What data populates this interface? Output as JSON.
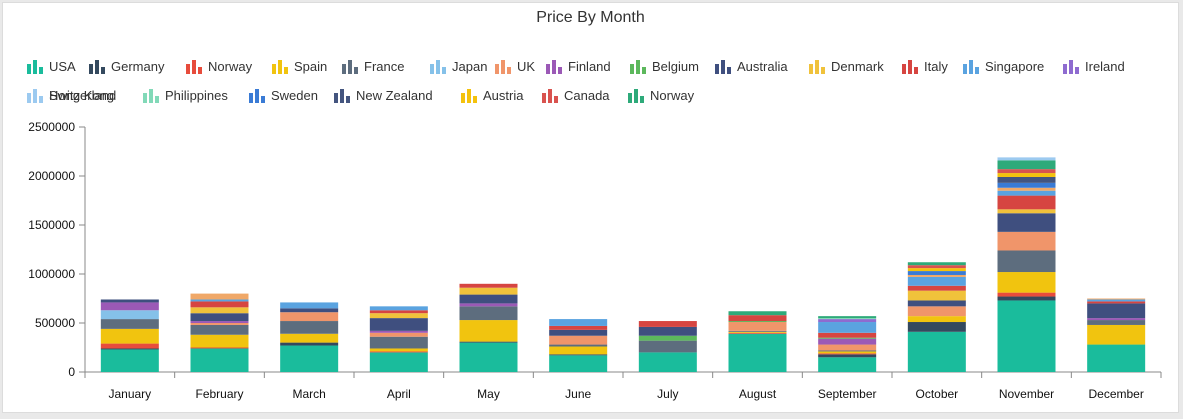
{
  "chart_data": {
    "type": "bar",
    "stacked": true,
    "title": "Price By Month",
    "xlabel": "",
    "ylabel": "",
    "ylim": [
      0,
      2500000
    ],
    "yticks": [
      0,
      500000,
      1000000,
      1500000,
      2000000,
      2500000
    ],
    "ytick_labels": [
      "0",
      "500000",
      "1000000",
      "1500000",
      "2000000",
      "2500000"
    ],
    "legend_position": "top",
    "categories": [
      "January",
      "February",
      "March",
      "April",
      "May",
      "June",
      "July",
      "August",
      "September",
      "October",
      "November",
      "December"
    ],
    "series": [
      {
        "name": "USA",
        "color": "#1abc9c",
        "values": [
          230000,
          240000,
          270000,
          200000,
          300000,
          170000,
          200000,
          390000,
          150000,
          410000,
          730000,
          280000
        ]
      },
      {
        "name": "Germany",
        "color": "#34495e",
        "values": [
          10000,
          0,
          30000,
          0,
          10000,
          10000,
          0,
          0,
          30000,
          100000,
          40000,
          0
        ]
      },
      {
        "name": "Norway",
        "color": "#e74c3c",
        "values": [
          50000,
          10000,
          0,
          10000,
          0,
          0,
          0,
          10000,
          10000,
          0,
          40000,
          0
        ]
      },
      {
        "name": "Spain",
        "color": "#f1c40f",
        "values": [
          150000,
          130000,
          90000,
          30000,
          220000,
          80000,
          0,
          10000,
          20000,
          60000,
          210000,
          200000
        ]
      },
      {
        "name": "France",
        "color": "#5d6d7e",
        "values": [
          100000,
          100000,
          130000,
          120000,
          140000,
          20000,
          120000,
          10000,
          10000,
          0,
          220000,
          50000
        ]
      },
      {
        "name": "Japan",
        "color": "#85c1e9",
        "values": [
          90000,
          0,
          0,
          0,
          0,
          0,
          0,
          0,
          0,
          0,
          0,
          0
        ]
      },
      {
        "name": "UK",
        "color": "#f0956a",
        "values": [
          0,
          20000,
          90000,
          40000,
          0,
          90000,
          0,
          90000,
          60000,
          100000,
          190000,
          0
        ]
      },
      {
        "name": "Finland",
        "color": "#9b59b6",
        "values": [
          80000,
          20000,
          0,
          20000,
          30000,
          0,
          0,
          0,
          60000,
          0,
          0,
          20000
        ]
      },
      {
        "name": "Belgium",
        "color": "#5cb85c",
        "values": [
          0,
          0,
          0,
          0,
          0,
          0,
          50000,
          10000,
          10000,
          0,
          0,
          0
        ]
      },
      {
        "name": "Australia",
        "color": "#3f4f7f",
        "values": [
          30000,
          80000,
          40000,
          130000,
          90000,
          60000,
          90000,
          0,
          0,
          60000,
          190000,
          150000
        ]
      },
      {
        "name": "Denmark",
        "color": "#f0c23b",
        "values": [
          0,
          60000,
          0,
          50000,
          70000,
          0,
          0,
          0,
          0,
          100000,
          40000,
          0
        ]
      },
      {
        "name": "Italy",
        "color": "#d64541",
        "values": [
          0,
          60000,
          0,
          30000,
          40000,
          40000,
          60000,
          60000,
          50000,
          50000,
          140000,
          20000
        ]
      },
      {
        "name": "Singapore",
        "color": "#5aa3e0",
        "values": [
          0,
          20000,
          60000,
          40000,
          0,
          70000,
          0,
          0,
          110000,
          90000,
          50000,
          20000
        ]
      },
      {
        "name": "Ireland",
        "color": "#8e6bd0",
        "values": [
          0,
          0,
          0,
          0,
          0,
          0,
          0,
          0,
          30000,
          0,
          0,
          0
        ]
      },
      {
        "name": "Switzerland",
        "color": "#f0a868",
        "values": [
          0,
          60000,
          0,
          0,
          0,
          0,
          0,
          0,
          0,
          20000,
          30000,
          10000
        ]
      },
      {
        "name": "Philippines",
        "color": "#82d9b8",
        "values": [
          0,
          0,
          0,
          0,
          0,
          0,
          0,
          0,
          10000,
          0,
          0,
          0
        ]
      },
      {
        "name": "Sweden",
        "color": "#3a7bd5",
        "values": [
          0,
          0,
          0,
          0,
          0,
          0,
          0,
          0,
          0,
          40000,
          50000,
          0
        ]
      },
      {
        "name": "New Zealand",
        "color": "#44557f",
        "values": [
          0,
          0,
          0,
          0,
          0,
          0,
          0,
          0,
          0,
          0,
          60000,
          0
        ]
      },
      {
        "name": "Austria",
        "color": "#f4c20d",
        "values": [
          0,
          0,
          0,
          0,
          0,
          0,
          0,
          0,
          0,
          30000,
          40000,
          0
        ]
      },
      {
        "name": "Canada",
        "color": "#d9534f",
        "values": [
          0,
          0,
          0,
          0,
          0,
          0,
          0,
          0,
          0,
          30000,
          40000,
          0
        ]
      },
      {
        "name": "Norway",
        "color": "#2eaa7a",
        "values": [
          0,
          0,
          0,
          0,
          0,
          0,
          0,
          40000,
          20000,
          30000,
          90000,
          0
        ]
      },
      {
        "name": "Hong Kong",
        "color": "#9ccaf0",
        "values": [
          0,
          0,
          0,
          0,
          0,
          0,
          0,
          0,
          0,
          0,
          30000,
          0
        ]
      }
    ]
  }
}
